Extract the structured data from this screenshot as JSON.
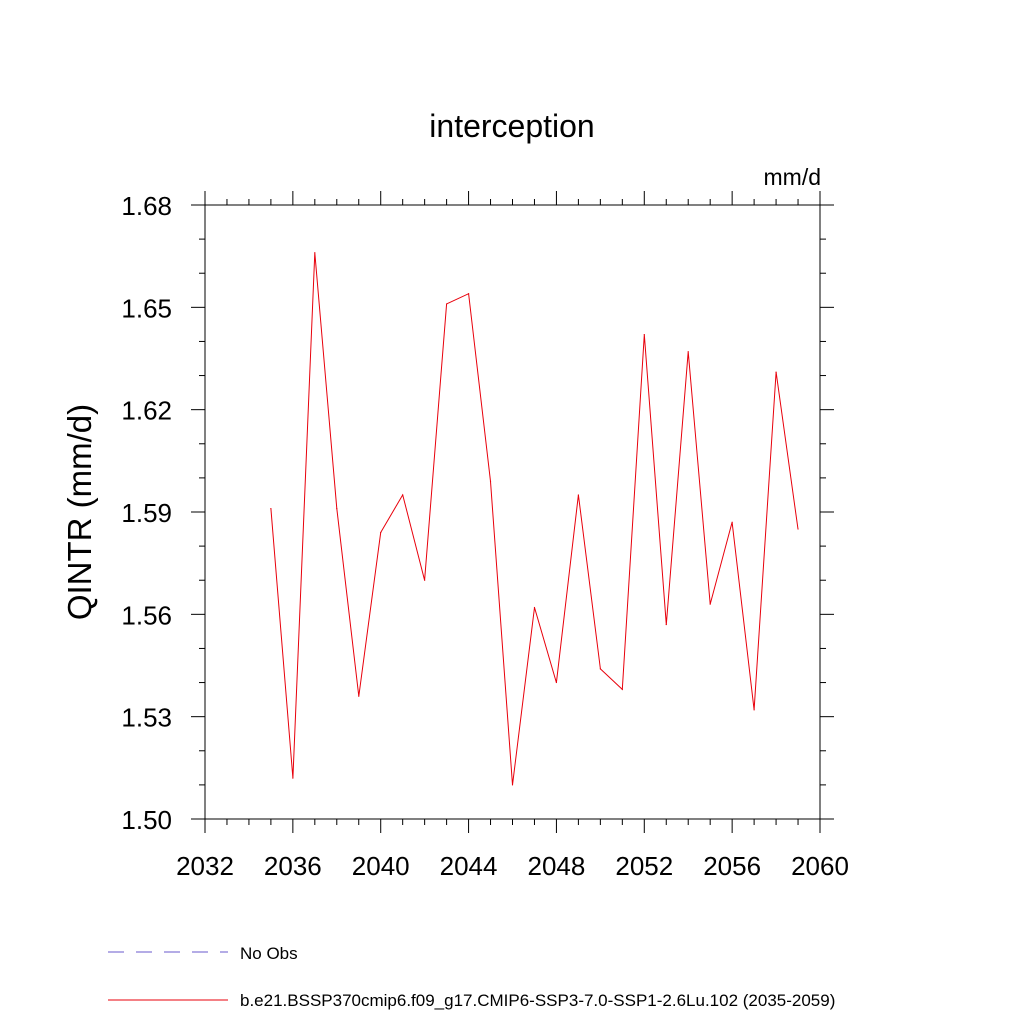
{
  "chart_data": {
    "type": "line",
    "title": "interception",
    "units_label": "mm/d",
    "ylabel": "QINTR  (mm/d)",
    "xlabel": "",
    "xlim": [
      2032,
      2060
    ],
    "ylim": [
      1.5,
      1.68
    ],
    "x_ticks": [
      2032,
      2036,
      2040,
      2044,
      2048,
      2052,
      2056,
      2060
    ],
    "y_ticks": [
      1.5,
      1.53,
      1.56,
      1.59,
      1.62,
      1.65,
      1.68
    ],
    "x_tick_labels": [
      "2032",
      "2036",
      "2040",
      "2044",
      "2048",
      "2052",
      "2056",
      "2060"
    ],
    "y_tick_labels": [
      "1.50",
      "1.53",
      "1.56",
      "1.59",
      "1.62",
      "1.65",
      "1.68"
    ],
    "grid": false,
    "legend_placement": "bottom-left",
    "series": [
      {
        "name": "b.e21.BSSP370cmip6.f09_g17.CMIP6-SSP3-7.0-SSP1-2.6Lu.102 (2035-2059)",
        "color": "#e8000b",
        "style": "solid",
        "x": [
          2035,
          2036,
          2037,
          2038,
          2039,
          2040,
          2041,
          2042,
          2043,
          2044,
          2045,
          2046,
          2047,
          2048,
          2049,
          2050,
          2051,
          2052,
          2053,
          2054,
          2055,
          2056,
          2057,
          2058,
          2059
        ],
        "values": [
          1.591,
          1.512,
          1.666,
          1.591,
          1.536,
          1.584,
          1.595,
          1.57,
          1.651,
          1.654,
          1.599,
          1.51,
          1.562,
          1.54,
          1.595,
          1.544,
          1.538,
          1.642,
          1.557,
          1.637,
          1.563,
          1.587,
          1.532,
          1.631,
          1.585
        ]
      }
    ],
    "legend": [
      {
        "label": "No Obs",
        "color": "#6a5acd",
        "style": "dashed"
      },
      {
        "label": "b.e21.BSSP370cmip6.f09_g17.CMIP6-SSP3-7.0-SSP1-2.6Lu.102 (2035-2059)",
        "color": "#e8000b",
        "style": "solid"
      }
    ]
  }
}
